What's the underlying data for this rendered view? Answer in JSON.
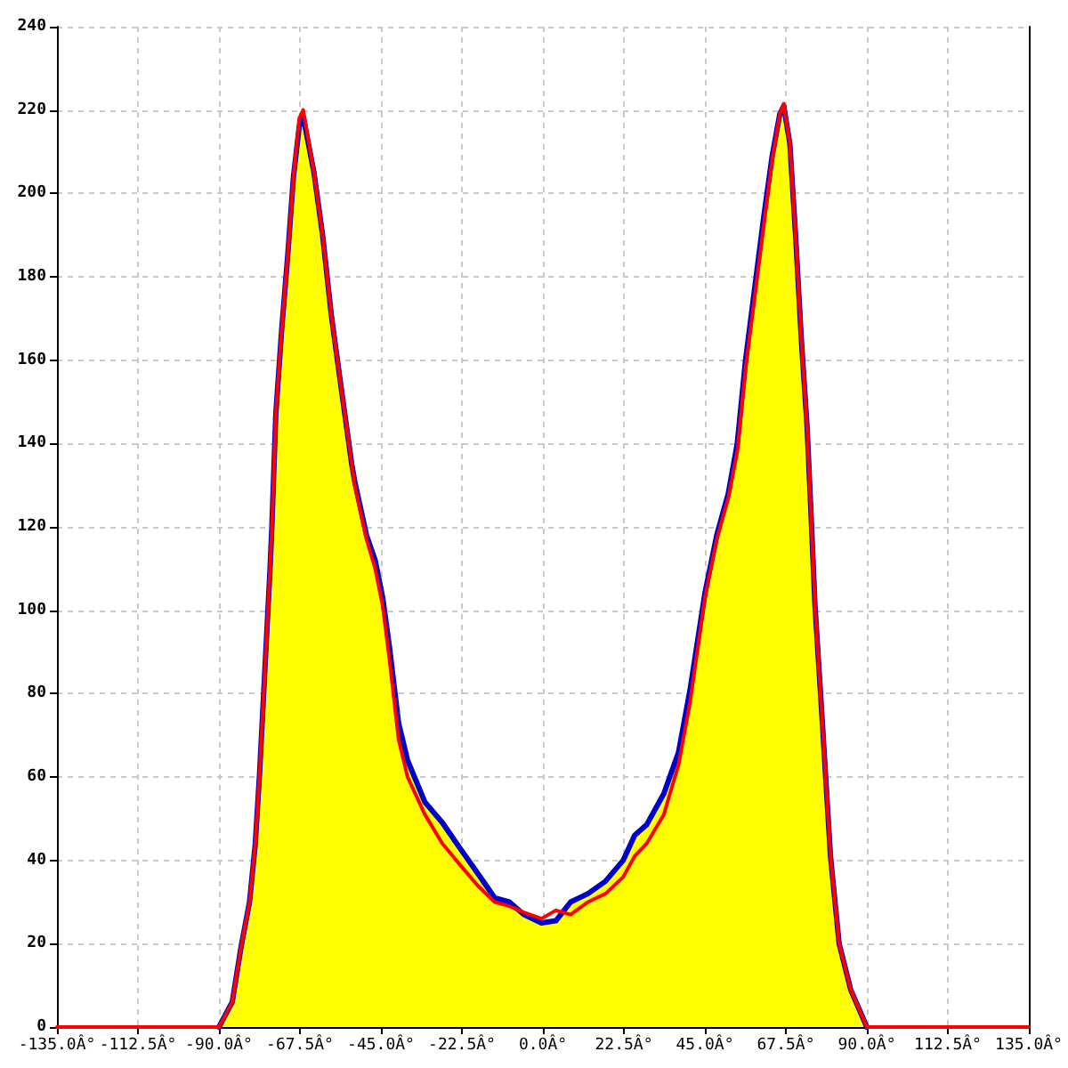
{
  "chart_data": {
    "type": "line",
    "x": [
      -135,
      -90,
      -86.3,
      -83.9,
      -81.5,
      -79.9,
      -78.7,
      -77.4,
      -75.8,
      -75.3,
      -74.2,
      -72.6,
      -70.9,
      -69.3,
      -67.7,
      -66.6,
      -63.6,
      -61.2,
      -58.8,
      -56.3,
      -53.1,
      -52.3,
      -49,
      -46.6,
      -44.5,
      -42.6,
      -40.1,
      -37.6,
      -32.8,
      -27.9,
      -23.1,
      -18.2,
      -13.4,
      -9.3,
      -5.3,
      -0.4,
      3.6,
      7.7,
      12.5,
      17.4,
      22.3,
      25.5,
      28.8,
      33.6,
      37.7,
      40.9,
      45,
      48.3,
      51.5,
      54,
      56.3,
      58.8,
      61.3,
      63.7,
      65.8,
      66.9,
      68.6,
      70.2,
      71.8,
      73.4,
      74.6,
      75.6,
      77.5,
      79.9,
      82.3,
      85.5,
      90,
      135
    ],
    "series": [
      {
        "color": "#0000cc",
        "values": [
          null,
          0,
          6,
          19,
          30,
          44,
          61,
          83,
          110,
          120,
          147,
          167,
          185,
          204,
          216,
          218.5,
          205,
          190,
          171,
          155,
          135,
          131,
          118,
          112,
          103,
          91,
          73,
          64,
          54,
          49,
          43,
          37,
          31,
          30,
          27,
          25,
          25.5,
          30,
          32,
          35,
          40,
          46,
          48.5,
          56,
          66,
          81,
          104,
          118,
          128,
          140,
          160,
          177,
          194,
          209,
          219,
          221,
          212,
          190,
          165,
          144,
          121,
          101,
          75,
          41,
          20,
          9,
          0,
          null
        ]
      },
      {
        "color": "#ff0000",
        "values": [
          0,
          0,
          6,
          19,
          30,
          44,
          61,
          83,
          110,
          120,
          147,
          167,
          185,
          204,
          218,
          220,
          205,
          190,
          171,
          155,
          135,
          130,
          117,
          110,
          101,
          88,
          69,
          60,
          51,
          44,
          39,
          34,
          30,
          29,
          27.5,
          26,
          28,
          27,
          30,
          32,
          36,
          41,
          44,
          51,
          63,
          78,
          103,
          117,
          127,
          138,
          158,
          175,
          192,
          208,
          219,
          221.5,
          212,
          190,
          165,
          144,
          121,
          101,
          75,
          41,
          20,
          9,
          0,
          0
        ]
      },
      {
        "type": "area",
        "color": "#ffff00",
        "values": [
          0,
          0,
          6,
          19,
          30,
          44,
          61,
          83,
          110,
          120,
          147,
          167,
          185,
          204,
          216,
          218.5,
          205,
          190,
          171,
          155,
          135,
          131,
          118,
          112,
          103,
          91,
          73,
          64,
          54,
          49,
          43,
          37,
          31,
          30,
          27,
          25,
          25.5,
          30,
          32,
          35,
          40,
          46,
          48.5,
          56,
          66,
          81,
          104,
          118,
          128,
          140,
          160,
          177,
          194,
          209,
          219,
          221,
          212,
          190,
          165,
          144,
          121,
          101,
          75,
          41,
          20,
          9,
          0,
          0
        ]
      }
    ],
    "xlim": [
      -135,
      135
    ],
    "xticks": [
      {
        "value": -135,
        "label": "-135.0Â°"
      },
      {
        "value": -112.5,
        "label": "-112.5Â°"
      },
      {
        "value": -90,
        "label": "-90.0Â°"
      },
      {
        "value": -67.5,
        "label": "-67.5Â°"
      },
      {
        "value": -45,
        "label": "-45.0Â°"
      },
      {
        "value": -22.5,
        "label": "-22.5Â°"
      },
      {
        "value": 0,
        "label": "0.0Â°"
      },
      {
        "value": 22.5,
        "label": "22.5Â°"
      },
      {
        "value": 45,
        "label": "45.0Â°"
      },
      {
        "value": 67.5,
        "label": "67.5Â°"
      },
      {
        "value": 90,
        "label": "90.0Â°"
      },
      {
        "value": 112.5,
        "label": "112.5Â°"
      },
      {
        "value": 135,
        "label": "135.0Â°"
      }
    ],
    "ylim": [
      0,
      240
    ],
    "yticks": [
      0,
      20,
      40,
      60,
      80,
      100,
      120,
      140,
      160,
      180,
      200,
      220,
      240
    ],
    "grid": true,
    "marker": "none",
    "line_style": "solid"
  }
}
